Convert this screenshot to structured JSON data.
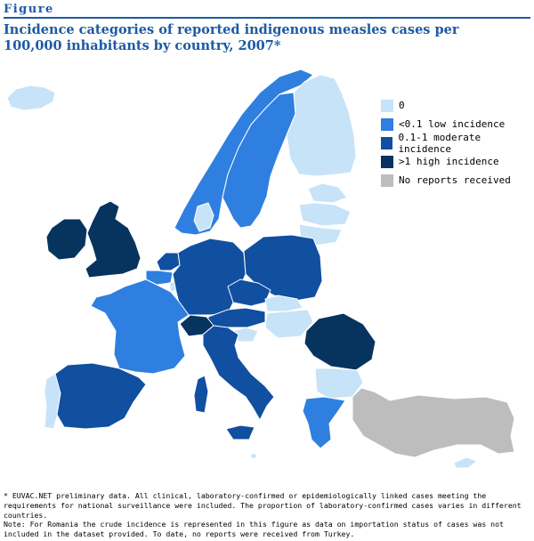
{
  "header": {
    "figure_label": "Figure",
    "title": "Incidence categories of reported indigenous measles cases per 100,000 inhabitants by country, 2007*"
  },
  "colors": {
    "zero": "#c7e3f8",
    "low": "#2f7fe0",
    "moderate": "#114fa0",
    "high": "#07345e",
    "no_report": "#bdbdbd",
    "border": "#ffffff"
  },
  "legend": [
    {
      "label": "0",
      "category": "zero"
    },
    {
      "label": "<0.1 low incidence",
      "category": "low"
    },
    {
      "label": "0.1-1 moderate incidence",
      "category": "moderate"
    },
    {
      "label": ">1 high incidence",
      "category": "high"
    },
    {
      "label": "No reports received",
      "category": "no_report"
    }
  ],
  "countries": {
    "iceland": "zero",
    "norway": "low",
    "sweden": "low",
    "finland": "zero",
    "estonia": "zero",
    "latvia": "zero",
    "lithuania": "zero",
    "ireland": "high",
    "united_kingdom": "high",
    "denmark": "zero",
    "netherlands": "moderate",
    "belgium": "low",
    "luxembourg": "zero",
    "germany": "moderate",
    "poland": "moderate",
    "france": "low",
    "switzerland": "high",
    "austria": "moderate",
    "czech": "moderate",
    "slovakia": "zero",
    "hungary": "zero",
    "slovenia": "zero",
    "portugal": "zero",
    "spain": "moderate",
    "italy": "moderate",
    "sardinia": "moderate",
    "sicily": "moderate",
    "romania": "high",
    "bulgaria": "zero",
    "greece": "low",
    "cyprus": "zero",
    "malta": "zero",
    "turkey": "no_report"
  },
  "footnote": {
    "line1": "* EUVAC.NET preliminary data. All clinical, laboratory-confirmed or epidemiologically linked cases meeting the requirements for national surveillance were included. The proportion of laboratory-confirmed cases varies in different countries.",
    "line2": "Note: For Romania the crude incidence is represented in this figure as data on importation status of cases was not included in the dataset provided. To date, no reports were received from Turkey."
  }
}
